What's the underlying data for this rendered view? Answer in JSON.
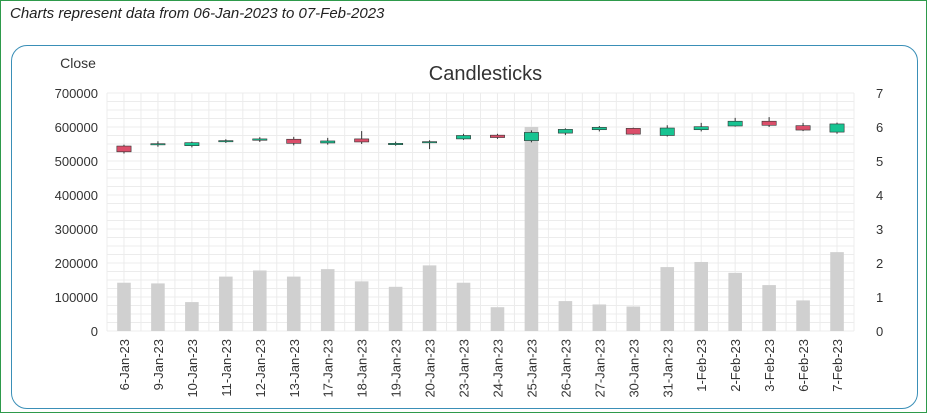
{
  "caption": "Charts represent data from 06-Jan-2023 to 07-Feb-2023",
  "chart_data": {
    "type": "candlestick",
    "title": "Candlesticks",
    "left_axis_label": "Close",
    "left_ylim": [
      0,
      700000
    ],
    "left_ticks": [
      0,
      100000,
      200000,
      300000,
      400000,
      500000,
      600000,
      700000
    ],
    "right_ylim": [
      0,
      7
    ],
    "right_ticks": [
      0,
      1,
      2,
      3,
      4,
      5,
      6,
      7
    ],
    "grid": true,
    "categories": [
      "6-Jan-23",
      "9-Jan-23",
      "10-Jan-23",
      "11-Jan-23",
      "12-Jan-23",
      "13-Jan-23",
      "17-Jan-23",
      "18-Jan-23",
      "19-Jan-23",
      "20-Jan-23",
      "23-Jan-23",
      "24-Jan-23",
      "25-Jan-23",
      "26-Jan-23",
      "27-Jan-23",
      "30-Jan-23",
      "31-Jan-23",
      "1-Feb-23",
      "2-Feb-23",
      "3-Feb-23",
      "6-Feb-23",
      "7-Feb-23"
    ],
    "ohlc": [
      {
        "open": 544000,
        "high": 548000,
        "low": 522000,
        "close": 527000
      },
      {
        "open": 548000,
        "high": 558000,
        "low": 542000,
        "close": 551000
      },
      {
        "open": 545000,
        "high": 557000,
        "low": 540000,
        "close": 554000
      },
      {
        "open": 557000,
        "high": 564000,
        "low": 553000,
        "close": 560000
      },
      {
        "open": 561000,
        "high": 570000,
        "low": 556000,
        "close": 565000
      },
      {
        "open": 564000,
        "high": 571000,
        "low": 546000,
        "close": 552000
      },
      {
        "open": 553000,
        "high": 568000,
        "low": 548000,
        "close": 559000
      },
      {
        "open": 565000,
        "high": 588000,
        "low": 550000,
        "close": 556000
      },
      {
        "open": 548000,
        "high": 557000,
        "low": 545000,
        "close": 552000
      },
      {
        "open": 555000,
        "high": 561000,
        "low": 535000,
        "close": 557000
      },
      {
        "open": 565000,
        "high": 580000,
        "low": 562000,
        "close": 575000
      },
      {
        "open": 576000,
        "high": 580000,
        "low": 565000,
        "close": 569000
      },
      {
        "open": 560000,
        "high": 590000,
        "low": 555000,
        "close": 584000
      },
      {
        "open": 582000,
        "high": 596000,
        "low": 576000,
        "close": 593000
      },
      {
        "open": 592000,
        "high": 603000,
        "low": 587000,
        "close": 599000
      },
      {
        "open": 596000,
        "high": 598000,
        "low": 577000,
        "close": 579000
      },
      {
        "open": 575000,
        "high": 605000,
        "low": 572000,
        "close": 597000
      },
      {
        "open": 592000,
        "high": 612000,
        "low": 587000,
        "close": 601000
      },
      {
        "open": 603000,
        "high": 627000,
        "low": 601000,
        "close": 617000
      },
      {
        "open": 617000,
        "high": 629000,
        "low": 600000,
        "close": 605000
      },
      {
        "open": 604000,
        "high": 612000,
        "low": 588000,
        "close": 591000
      },
      {
        "open": 585000,
        "high": 613000,
        "low": 580000,
        "close": 609000
      }
    ],
    "volume_right_axis": [
      1.42,
      1.4,
      0.85,
      1.6,
      1.78,
      1.6,
      1.82,
      1.46,
      1.3,
      1.93,
      1.42,
      0.7,
      6.0,
      0.88,
      0.78,
      0.72,
      1.88,
      2.03,
      1.71,
      1.35,
      0.9,
      2.32
    ],
    "colors": {
      "up": "#17c492",
      "down": "#db4e6a",
      "volume": "#d0d0d0",
      "grid": "#ececec"
    }
  }
}
